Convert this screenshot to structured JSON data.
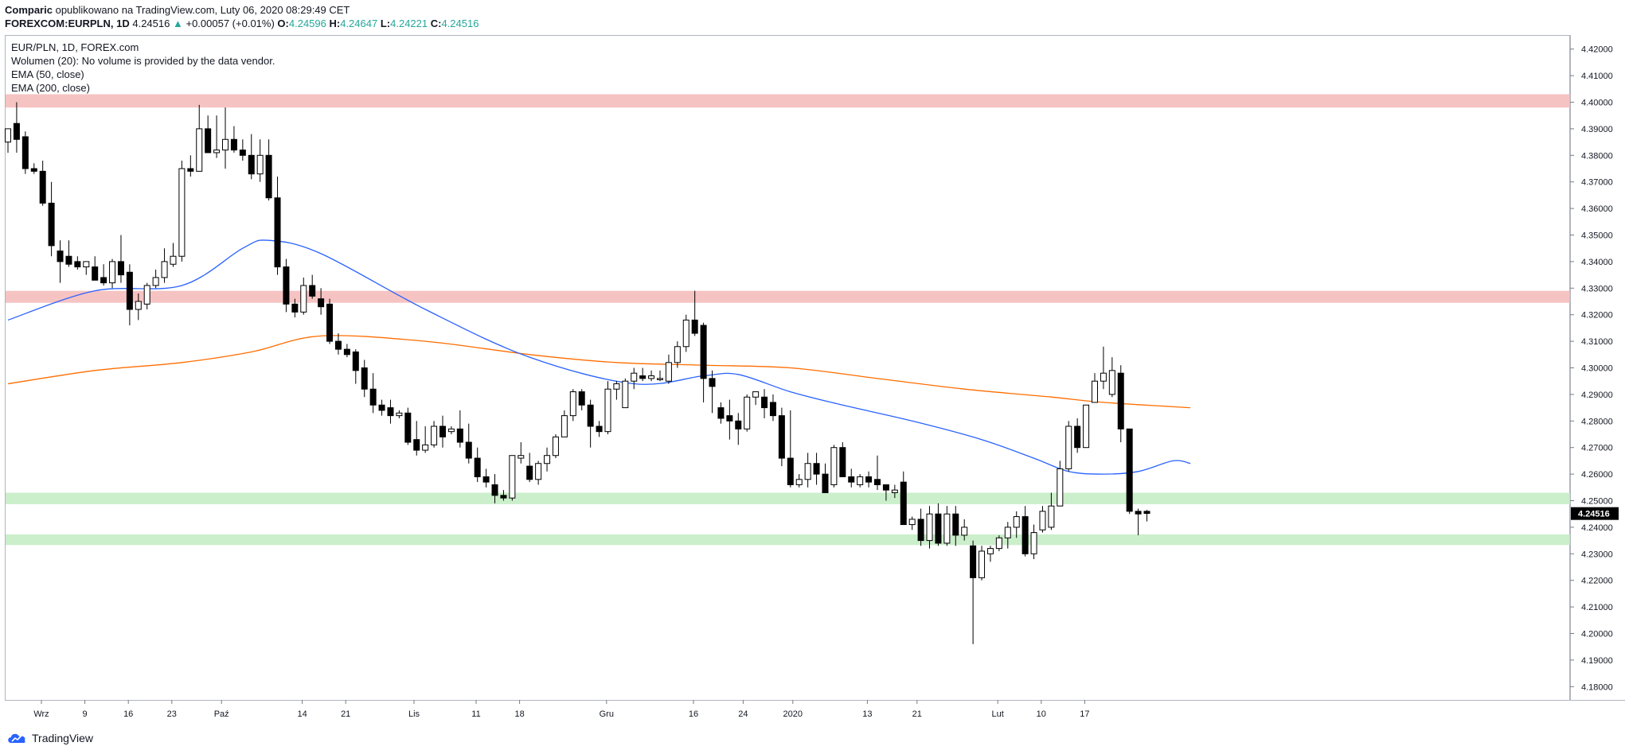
{
  "header": {
    "author": "Comparic",
    "published_text": "opublikowano na TradingView.com, Luty 06, 2020 08:29:49 CET",
    "symbol": "FOREXCOM:EURPLN, 1D",
    "last": "4.24516",
    "change": "+0.00057 (+0.01%)",
    "o_label": "O:",
    "o": "4.24596",
    "h_label": "H:",
    "h": "4.24647",
    "l_label": "L:",
    "l": "4.24221",
    "c_label": "C:",
    "c": "4.24516",
    "up_color": "#26a69a"
  },
  "legend": {
    "symbol": "EUR/PLN, 1D, FOREX.com",
    "volume": "Wolumen (20): No volume is provided by the data vendor.",
    "ema50": "EMA (50, close)",
    "ema200": "EMA (200, close)"
  },
  "footer": {
    "brand": "TradingView",
    "icon": "tradingview-cloud-icon"
  },
  "chart_data": {
    "type": "candlestick",
    "symbol": "EUR/PLN",
    "ylim": [
      4.175,
      4.425
    ],
    "y_ticks": [
      "4.18000",
      "4.19000",
      "4.20000",
      "4.21000",
      "4.22000",
      "4.23000",
      "4.24000",
      "4.25000",
      "4.26000",
      "4.27000",
      "4.28000",
      "4.29000",
      "4.30000",
      "4.31000",
      "4.32000",
      "4.33000",
      "4.34000",
      "4.35000",
      "4.36000",
      "4.37000",
      "4.38000",
      "4.39000",
      "4.40000",
      "4.41000",
      "4.42000"
    ],
    "x_labels": [
      {
        "label": "Wrz",
        "date": "2019-09-02"
      },
      {
        "label": "9",
        "date": "2019-09-09"
      },
      {
        "label": "16",
        "date": "2019-09-16"
      },
      {
        "label": "23",
        "date": "2019-09-23"
      },
      {
        "label": "Paź",
        "date": "2019-10-01"
      },
      {
        "label": "14",
        "date": "2019-10-14"
      },
      {
        "label": "21",
        "date": "2019-10-21"
      },
      {
        "label": "Lis",
        "date": "2019-11-01"
      },
      {
        "label": "11",
        "date": "2019-11-11"
      },
      {
        "label": "18",
        "date": "2019-11-18"
      },
      {
        "label": "Gru",
        "date": "2019-12-02"
      },
      {
        "label": "16",
        "date": "2019-12-16"
      },
      {
        "label": "24",
        "date": "2019-12-24"
      },
      {
        "label": "2020",
        "date": "2020-01-01"
      },
      {
        "label": "13",
        "date": "2020-01-13"
      },
      {
        "label": "21",
        "date": "2020-01-21"
      },
      {
        "label": "Lut",
        "date": "2020-02-03"
      },
      {
        "label": "10",
        "date": "2020-02-10"
      },
      {
        "label": "17",
        "date": "2020-02-17"
      }
    ],
    "last_price_label": "4.24516",
    "candles_ohlc": [
      [
        4.385,
        4.39,
        4.381,
        4.39
      ],
      [
        4.392,
        4.4,
        4.381,
        4.386
      ],
      [
        4.387,
        4.389,
        4.373,
        4.375
      ],
      [
        4.375,
        4.377,
        4.373,
        4.374
      ],
      [
        4.374,
        4.378,
        4.361,
        4.362
      ],
      [
        4.362,
        4.37,
        4.342,
        4.346
      ],
      [
        4.344,
        4.348,
        4.332,
        4.34
      ],
      [
        4.342,
        4.348,
        4.338,
        4.339
      ],
      [
        4.34,
        4.342,
        4.337,
        4.338
      ],
      [
        4.338,
        4.34,
        4.335,
        4.34
      ],
      [
        4.338,
        4.342,
        4.333,
        4.333
      ],
      [
        4.334,
        4.339,
        4.331,
        4.332
      ],
      [
        4.332,
        4.341,
        4.33,
        4.34
      ],
      [
        4.34,
        4.35,
        4.332,
        4.335
      ],
      [
        4.336,
        4.339,
        4.316,
        4.322
      ],
      [
        4.322,
        4.328,
        4.318,
        4.325
      ],
      [
        4.324,
        4.332,
        4.322,
        4.331
      ],
      [
        4.331,
        4.337,
        4.33,
        4.334
      ],
      [
        4.334,
        4.345,
        4.332,
        4.34
      ],
      [
        4.339,
        4.347,
        4.338,
        4.342
      ],
      [
        4.342,
        4.378,
        4.34,
        4.375
      ],
      [
        4.375,
        4.38,
        4.372,
        4.374
      ],
      [
        4.374,
        4.399,
        4.374,
        4.39
      ],
      [
        4.39,
        4.395,
        4.381,
        4.381
      ],
      [
        4.381,
        4.395,
        4.379,
        4.382
      ],
      [
        4.382,
        4.398,
        4.375,
        4.386
      ],
      [
        4.386,
        4.391,
        4.381,
        4.382
      ],
      [
        4.382,
        4.386,
        4.378,
        4.38
      ],
      [
        4.38,
        4.388,
        4.371,
        4.373
      ],
      [
        4.373,
        4.386,
        4.37,
        4.38
      ],
      [
        4.38,
        4.386,
        4.363,
        4.364
      ],
      [
        4.364,
        4.372,
        4.335,
        4.338
      ],
      [
        4.338,
        4.341,
        4.321,
        4.324
      ],
      [
        4.324,
        4.326,
        4.319,
        4.321
      ],
      [
        4.321,
        4.334,
        4.32,
        4.331
      ],
      [
        4.331,
        4.335,
        4.326,
        4.327
      ],
      [
        4.326,
        4.33,
        4.32,
        4.323
      ],
      [
        4.324,
        4.326,
        4.309,
        4.31
      ],
      [
        4.31,
        4.313,
        4.305,
        4.307
      ],
      [
        4.307,
        4.309,
        4.304,
        4.305
      ],
      [
        4.306,
        4.307,
        4.294,
        4.299
      ],
      [
        4.3,
        4.303,
        4.289,
        4.292
      ],
      [
        4.292,
        4.298,
        4.283,
        4.286
      ],
      [
        4.286,
        4.288,
        4.282,
        4.284
      ],
      [
        4.285,
        4.288,
        4.279,
        4.282
      ],
      [
        4.282,
        4.284,
        4.281,
        4.283
      ],
      [
        4.283,
        4.285,
        4.271,
        4.272
      ],
      [
        4.273,
        4.28,
        4.267,
        4.269
      ],
      [
        4.269,
        4.278,
        4.268,
        4.271
      ],
      [
        4.271,
        4.28,
        4.27,
        4.278
      ],
      [
        4.278,
        4.282,
        4.27,
        4.274
      ],
      [
        4.276,
        4.278,
        4.275,
        4.277
      ],
      [
        4.277,
        4.284,
        4.27,
        4.272
      ],
      [
        4.272,
        4.279,
        4.264,
        4.266
      ],
      [
        4.266,
        4.27,
        4.257,
        4.259
      ],
      [
        4.259,
        4.262,
        4.255,
        4.257
      ],
      [
        4.256,
        4.26,
        4.249,
        4.252
      ],
      [
        4.252,
        4.254,
        4.25,
        4.251
      ],
      [
        4.251,
        4.264,
        4.25,
        4.267
      ],
      [
        4.266,
        4.272,
        4.264,
        4.267
      ],
      [
        4.263,
        4.268,
        4.257,
        4.258
      ],
      [
        4.258,
        4.265,
        4.256,
        4.264
      ],
      [
        4.264,
        4.27,
        4.261,
        4.267
      ],
      [
        4.267,
        4.275,
        4.266,
        4.274
      ],
      [
        4.274,
        4.284,
        4.274,
        4.282
      ],
      [
        4.282,
        4.292,
        4.28,
        4.291
      ],
      [
        4.291,
        4.292,
        4.284,
        4.286
      ],
      [
        4.286,
        4.288,
        4.27,
        4.278
      ],
      [
        4.278,
        4.28,
        4.274,
        4.276
      ],
      [
        4.276,
        4.295,
        4.275,
        4.292
      ],
      [
        4.292,
        4.295,
        4.288,
        4.294
      ],
      [
        4.285,
        4.296,
        4.285,
        4.295
      ],
      [
        4.295,
        4.3,
        4.292,
        4.298
      ],
      [
        4.297,
        4.3,
        4.295,
        4.296
      ],
      [
        4.296,
        4.299,
        4.295,
        4.297
      ],
      [
        4.296,
        4.299,
        4.295,
        4.296
      ],
      [
        4.295,
        4.305,
        4.294,
        4.302
      ],
      [
        4.302,
        4.31,
        4.3,
        4.308
      ],
      [
        4.308,
        4.32,
        4.306,
        4.318
      ],
      [
        4.318,
        4.329,
        4.312,
        4.313
      ],
      [
        4.316,
        4.317,
        4.287,
        4.296
      ],
      [
        4.296,
        4.299,
        4.283,
        4.293
      ],
      [
        4.285,
        4.287,
        4.279,
        4.281
      ],
      [
        4.282,
        4.288,
        4.273,
        4.28
      ],
      [
        4.28,
        4.283,
        4.271,
        4.277
      ],
      [
        4.277,
        4.29,
        4.276,
        4.289
      ],
      [
        4.289,
        4.291,
        4.286,
        4.291
      ],
      [
        4.289,
        4.292,
        4.281,
        4.285
      ],
      [
        4.287,
        4.29,
        4.28,
        4.282
      ],
      [
        4.282,
        4.285,
        4.263,
        4.266
      ],
      [
        4.266,
        4.284,
        4.255,
        4.256
      ],
      [
        4.256,
        4.26,
        4.255,
        4.258
      ],
      [
        4.258,
        4.268,
        4.255,
        4.264
      ],
      [
        4.264,
        4.268,
        4.256,
        4.26
      ],
      [
        4.26,
        4.264,
        4.253,
        4.253
      ],
      [
        4.256,
        4.271,
        4.255,
        4.27
      ],
      [
        4.27,
        4.272,
        4.259,
        4.259
      ],
      [
        4.259,
        4.262,
        4.255,
        4.257
      ],
      [
        4.256,
        4.26,
        4.255,
        4.259
      ],
      [
        4.259,
        4.261,
        4.255,
        4.257
      ],
      [
        4.258,
        4.267,
        4.254,
        4.256
      ],
      [
        4.256,
        4.256,
        4.25,
        4.254
      ],
      [
        4.253,
        4.256,
        4.251,
        4.254
      ],
      [
        4.257,
        4.261,
        4.241,
        4.241
      ],
      [
        4.241,
        4.244,
        4.239,
        4.243
      ],
      [
        4.243,
        4.247,
        4.233,
        4.235
      ],
      [
        4.235,
        4.248,
        4.232,
        4.245
      ],
      [
        4.245,
        4.249,
        4.233,
        4.234
      ],
      [
        4.234,
        4.248,
        4.233,
        4.245
      ],
      [
        4.245,
        4.248,
        4.233,
        4.237
      ],
      [
        4.237,
        4.243,
        4.235,
        4.24
      ],
      [
        4.233,
        4.235,
        4.196,
        4.221
      ],
      [
        4.221,
        4.233,
        4.22,
        4.231
      ],
      [
        4.23,
        4.233,
        4.227,
        4.232
      ],
      [
        4.232,
        4.237,
        4.231,
        4.236
      ],
      [
        4.236,
        4.242,
        4.232,
        4.24
      ],
      [
        4.24,
        4.246,
        4.236,
        4.244
      ],
      [
        4.244,
        4.248,
        4.229,
        4.23
      ],
      [
        4.23,
        4.241,
        4.228,
        4.238
      ],
      [
        4.239,
        4.248,
        4.238,
        4.246
      ],
      [
        4.24,
        4.253,
        4.239,
        4.248
      ],
      [
        4.248,
        4.265,
        4.248,
        4.262
      ],
      [
        4.262,
        4.28,
        4.261,
        4.278
      ],
      [
        4.278,
        4.281,
        4.268,
        4.27
      ],
      [
        4.27,
        4.286,
        4.27,
        4.286
      ],
      [
        4.287,
        4.298,
        4.287,
        4.295
      ],
      [
        4.295,
        4.308,
        4.292,
        4.298
      ],
      [
        4.29,
        4.304,
        4.289,
        4.299
      ],
      [
        4.298,
        4.301,
        4.272,
        4.277
      ],
      [
        4.277,
        4.277,
        4.245,
        4.246
      ],
      [
        4.246,
        4.247,
        4.237,
        4.245
      ],
      [
        4.246,
        4.2465,
        4.2422,
        4.2452
      ]
    ],
    "ema50": [
      [
        0,
        4.318
      ],
      [
        10,
        4.329
      ],
      [
        20,
        4.331
      ],
      [
        27,
        4.345
      ],
      [
        30,
        4.348
      ],
      [
        36,
        4.343
      ],
      [
        48,
        4.322
      ],
      [
        60,
        4.304
      ],
      [
        72,
        4.294
      ],
      [
        80,
        4.297
      ],
      [
        84,
        4.2975
      ],
      [
        90,
        4.291
      ],
      [
        96,
        4.286
      ],
      [
        104,
        4.28
      ],
      [
        112,
        4.273
      ],
      [
        118,
        4.266
      ],
      [
        122,
        4.261
      ],
      [
        126,
        4.26
      ],
      [
        130,
        4.261
      ],
      [
        134,
        4.265
      ],
      [
        136,
        4.264
      ]
    ],
    "ema200": [
      [
        0,
        4.294
      ],
      [
        10,
        4.299
      ],
      [
        20,
        4.302
      ],
      [
        28,
        4.306
      ],
      [
        36,
        4.312
      ],
      [
        48,
        4.31
      ],
      [
        60,
        4.305
      ],
      [
        70,
        4.302
      ],
      [
        80,
        4.301
      ],
      [
        90,
        4.3
      ],
      [
        100,
        4.296
      ],
      [
        110,
        4.292
      ],
      [
        120,
        4.289
      ],
      [
        126,
        4.287
      ],
      [
        136,
        4.285
      ]
    ],
    "ema50_color": "#2962ff",
    "ema200_color": "#ff6d00",
    "resistance_zones": [
      [
        4.398,
        4.403
      ],
      [
        4.3245,
        4.329
      ]
    ],
    "support_zones": [
      [
        4.2487,
        4.253
      ],
      [
        4.2333,
        4.2373
      ]
    ],
    "resistance_color": "#f4b8b8",
    "support_color": "#c5ecc5"
  }
}
